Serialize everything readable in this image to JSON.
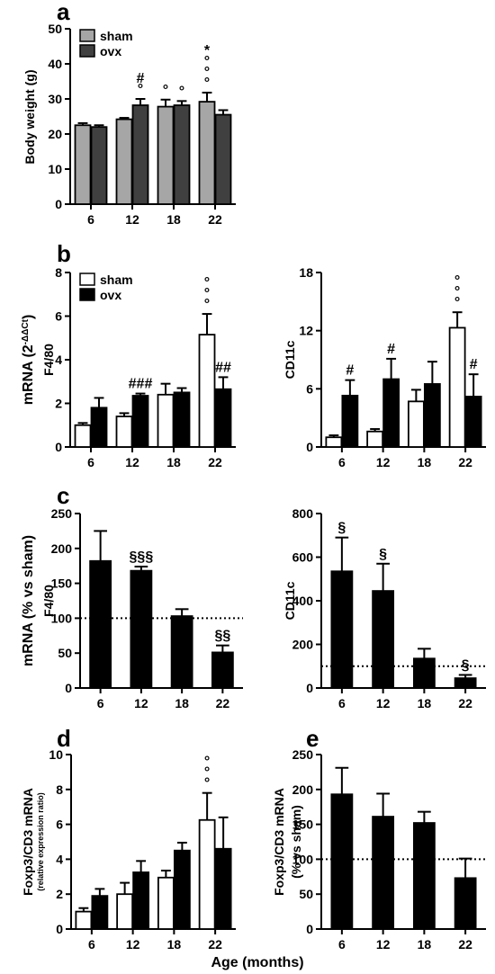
{
  "figure": {
    "x_title": "Age (months)"
  },
  "colors": {
    "sham_a": "#a6a6a6",
    "ovx_a": "#404040",
    "sham_bd": "#ffffff",
    "ovx_bd": "#000000"
  },
  "chart_data": [
    {
      "id": "a",
      "panel_label": "a",
      "type": "bar",
      "ylabel": "Body weight (g)",
      "ylim": [
        0,
        50
      ],
      "yticks": [
        0,
        10,
        20,
        30,
        40,
        50
      ],
      "categories": [
        "6",
        "12",
        "18",
        "22"
      ],
      "legend": {
        "position": "top-left",
        "entries": [
          "sham",
          "ovx"
        ]
      },
      "series": [
        {
          "name": "sham",
          "color": "#a6a6a6",
          "values": [
            22.5,
            24.2,
            27.8,
            29.2
          ],
          "errors": [
            0.6,
            0.4,
            2.0,
            2.6
          ]
        },
        {
          "name": "ovx",
          "color": "#404040",
          "values": [
            22.0,
            28.2,
            28.2,
            25.5
          ],
          "errors": [
            0.5,
            1.8,
            1.2,
            1.3
          ]
        }
      ],
      "annotations": [
        {
          "series": 1,
          "index": 1,
          "text": "#\n°"
        },
        {
          "series": 0,
          "index": 2,
          "text": "°"
        },
        {
          "series": 1,
          "index": 2,
          "text": "°"
        },
        {
          "series": 0,
          "index": 3,
          "text": "*\n°\n°\n°"
        }
      ]
    },
    {
      "id": "b1",
      "panel_label": "b",
      "type": "bar",
      "ylabel": "mRNA (2^-ΔΔCt)",
      "ylabel_prefix": "mRNA (2",
      "ylabel_sup": "-ΔΔCt",
      "ylabel_suffix": ")",
      "ylabel2": "F4/80",
      "ylim": [
        0,
        8
      ],
      "yticks": [
        0,
        2,
        4,
        6,
        8
      ],
      "categories": [
        "6",
        "12",
        "18",
        "22"
      ],
      "legend": {
        "position": "top-left",
        "entries": [
          "sham",
          "ovx"
        ]
      },
      "series": [
        {
          "name": "sham",
          "color": "#ffffff",
          "values": [
            1.0,
            1.4,
            2.4,
            5.15
          ],
          "errors": [
            0.1,
            0.15,
            0.5,
            0.95
          ]
        },
        {
          "name": "ovx",
          "color": "#000000",
          "values": [
            1.8,
            2.35,
            2.5,
            2.65
          ],
          "errors": [
            0.45,
            0.1,
            0.2,
            0.55
          ]
        }
      ],
      "annotations": [
        {
          "series": 1,
          "index": 1,
          "text": "###"
        },
        {
          "series": 0,
          "index": 3,
          "text": "°\n°\n°"
        },
        {
          "series": 1,
          "index": 3,
          "text": "##"
        }
      ]
    },
    {
      "id": "b2",
      "panel_label": "",
      "type": "bar",
      "ylabel": "CD11c",
      "ylim": [
        0,
        18
      ],
      "yticks": [
        0,
        6,
        12,
        18
      ],
      "categories": [
        "6",
        "12",
        "18",
        "22"
      ],
      "series": [
        {
          "name": "sham",
          "color": "#ffffff",
          "values": [
            1.0,
            1.6,
            4.7,
            12.3
          ],
          "errors": [
            0.2,
            0.25,
            1.2,
            1.6
          ]
        },
        {
          "name": "ovx",
          "color": "#000000",
          "values": [
            5.3,
            7.0,
            6.5,
            5.2
          ],
          "errors": [
            1.6,
            2.1,
            2.3,
            2.3
          ]
        }
      ],
      "annotations": [
        {
          "series": 1,
          "index": 0,
          "text": "#"
        },
        {
          "series": 1,
          "index": 1,
          "text": "#"
        },
        {
          "series": 0,
          "index": 3,
          "text": "°\n°\n°"
        },
        {
          "series": 1,
          "index": 3,
          "text": "#"
        }
      ]
    },
    {
      "id": "c1",
      "panel_label": "c",
      "type": "bar",
      "ylabel": "mRNA (% vs sham)",
      "ylabel2": "F4/80",
      "ylim": [
        0,
        250
      ],
      "yticks": [
        0,
        50,
        100,
        150,
        200,
        250
      ],
      "reference_line": 100,
      "categories": [
        "6",
        "12",
        "18",
        "22"
      ],
      "series": [
        {
          "name": "ovx",
          "color": "#000000",
          "values": [
            182,
            168,
            103,
            51
          ],
          "errors": [
            43,
            6,
            10,
            10
          ]
        }
      ],
      "annotations": [
        {
          "series": 0,
          "index": 1,
          "text": "§§§"
        },
        {
          "series": 0,
          "index": 3,
          "text": "§§"
        }
      ]
    },
    {
      "id": "c2",
      "panel_label": "",
      "type": "bar",
      "ylabel": "CD11c",
      "ylim": [
        0,
        800
      ],
      "yticks": [
        0,
        200,
        400,
        600,
        800
      ],
      "reference_line": 100,
      "categories": [
        "6",
        "12",
        "18",
        "22"
      ],
      "series": [
        {
          "name": "ovx",
          "color": "#000000",
          "values": [
            535,
            445,
            135,
            45
          ],
          "errors": [
            155,
            125,
            45,
            15
          ]
        }
      ],
      "annotations": [
        {
          "series": 0,
          "index": 0,
          "text": "§"
        },
        {
          "series": 0,
          "index": 1,
          "text": "§"
        },
        {
          "series": 0,
          "index": 3,
          "text": "§"
        }
      ]
    },
    {
      "id": "d",
      "panel_label": "d",
      "type": "bar",
      "ylabel": "Foxp3/CD3 mRNA",
      "ylabel_small": "(relative expression ratio)",
      "ylim": [
        0,
        10
      ],
      "yticks": [
        0,
        2,
        4,
        6,
        8,
        10
      ],
      "categories": [
        "6",
        "12",
        "18",
        "22"
      ],
      "series": [
        {
          "name": "sham",
          "color": "#ffffff",
          "values": [
            1.0,
            2.0,
            2.95,
            6.25
          ],
          "errors": [
            0.2,
            0.65,
            0.4,
            1.55
          ]
        },
        {
          "name": "ovx",
          "color": "#000000",
          "values": [
            1.9,
            3.25,
            4.5,
            4.6
          ],
          "errors": [
            0.4,
            0.65,
            0.45,
            1.8
          ]
        }
      ],
      "annotations": [
        {
          "series": 0,
          "index": 3,
          "text": "°\n°\n°"
        }
      ]
    },
    {
      "id": "e",
      "panel_label": "e",
      "type": "bar",
      "ylabel": "Foxp3/CD3 mRNA",
      "ylabel2": "(% vs sham)",
      "ylim": [
        0,
        250
      ],
      "yticks": [
        0,
        50,
        100,
        150,
        200,
        250
      ],
      "reference_line": 100,
      "categories": [
        "6",
        "12",
        "18",
        "22"
      ],
      "series": [
        {
          "name": "ovx",
          "color": "#000000",
          "values": [
            193,
            161,
            152,
            73
          ],
          "errors": [
            38,
            33,
            16,
            28
          ]
        }
      ],
      "annotations": []
    }
  ]
}
